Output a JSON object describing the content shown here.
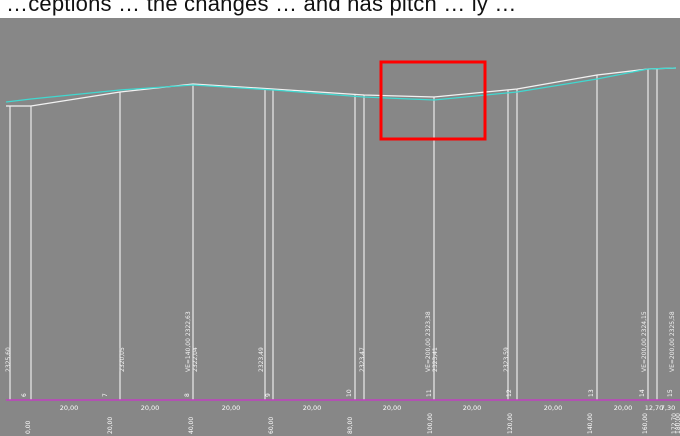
{
  "caption": "…ceptions … the changes … and has pitch … ly …",
  "colors": {
    "background": "#878787",
    "terrain": "#f2f2f2",
    "design": "#40d8d0",
    "guide": "#ffffff",
    "baseline": "#c040c0",
    "highlight": "#ff0000"
  },
  "station_labels": [
    "2325,60",
    "2320,05",
    "VE=140,00 2322,63\n2322,04",
    "2323,49",
    "2323,47",
    "VE=200,00 2323,38\n2323,41",
    "2323,59",
    "VE=200,00 2324,15",
    "VE=200,00 2325,58"
  ],
  "point_numbers": [
    "6",
    "7",
    "8",
    "9",
    "10",
    "11",
    "12",
    "13",
    "14",
    "15"
  ],
  "segment_distances": [
    "20,00",
    "20,00",
    "20,00",
    "20,00",
    "20,00",
    "20,00",
    "20,00",
    "20,00",
    "12,70",
    "7,30"
  ],
  "chainage_labels": [
    "0,00",
    "20,00",
    "40,00",
    "60,00",
    "80,00",
    "100,00",
    "120,00",
    "140,00",
    "160,00",
    "172,70",
    "180,00"
  ]
}
